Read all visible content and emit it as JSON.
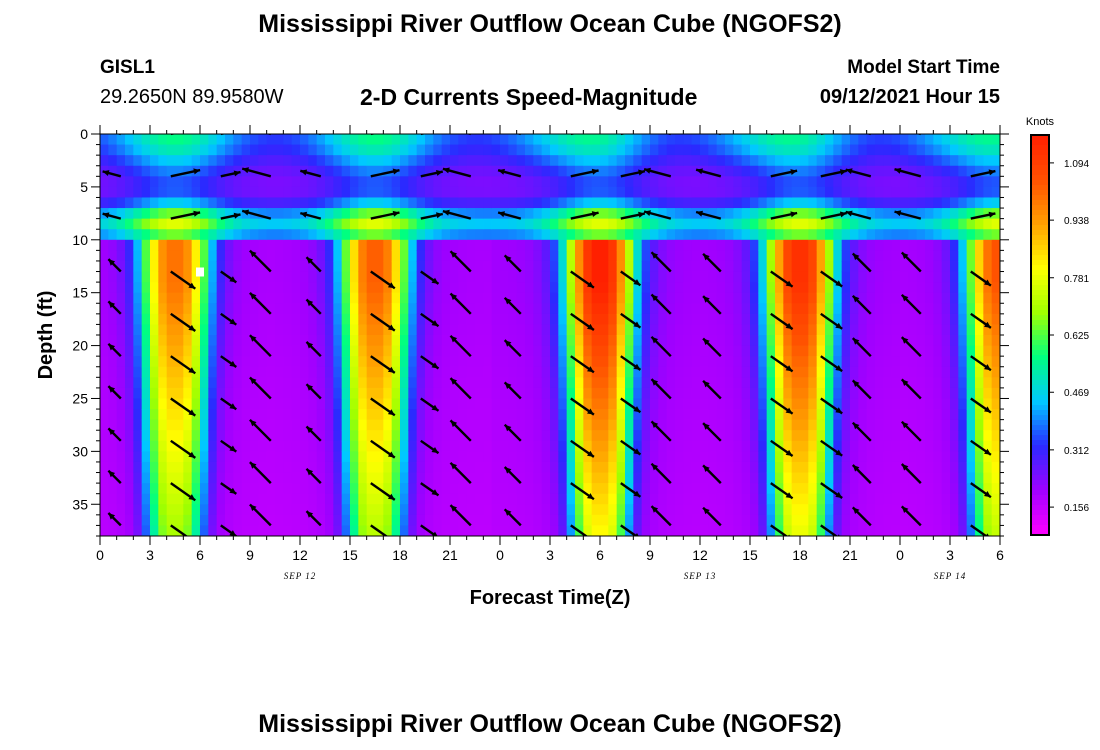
{
  "title": "Mississippi River Outflow Ocean Cube (NGOFS2)",
  "bottom_title": "Mississippi River Outflow Ocean Cube (NGOFS2)",
  "station": {
    "id": "GISL1",
    "coords": "29.2650N  89.9580W"
  },
  "subtitle": "2-D Currents Speed-Magnitude",
  "model_start": {
    "label": "Model Start Time",
    "value": "09/12/2021 Hour 15"
  },
  "chart_data": {
    "type": "heatmap",
    "xlabel": "Forecast Time(Z)",
    "ylabel": "Depth (ft)",
    "x_ticks": [
      "0",
      "3",
      "6",
      "9",
      "12",
      "15",
      "18",
      "21",
      "0",
      "3",
      "6",
      "9",
      "12",
      "15",
      "18",
      "21",
      "0",
      "3",
      "6"
    ],
    "x_range_hours": [
      0,
      54
    ],
    "date_labels": [
      {
        "text": "SEP 12",
        "hour": 12
      },
      {
        "text": "SEP 13",
        "hour": 36
      },
      {
        "text": "SEP 14",
        "hour": 51
      }
    ],
    "y_ticks": [
      0,
      5,
      10,
      15,
      20,
      25,
      30,
      35
    ],
    "ylim": [
      0,
      38
    ],
    "y_inverted": true,
    "colorbar": {
      "unit": "Knots",
      "ticks": [
        0.156,
        0.312,
        0.469,
        0.625,
        0.781,
        0.938,
        1.094
      ],
      "range": [
        0.08,
        1.17
      ],
      "colors": [
        "#ff00ff",
        "#a000ff",
        "#2a2aff",
        "#00c8ff",
        "#00ff80",
        "#a0ff00",
        "#ffff00",
        "#ffa000",
        "#ff5000",
        "#ff1e00"
      ]
    },
    "description_note": "Tidal current speed magnitude vs depth and forecast hour; high-speed lower layer (~10-38 ft) alternates with low-speed slack periods.",
    "speed_peaks": [
      {
        "hour": 4.5,
        "bottom": 0.95
      },
      {
        "hour": 16.5,
        "bottom": 0.98
      },
      {
        "hour": 30,
        "bottom": 1.12
      },
      {
        "hour": 42,
        "bottom": 1.08
      },
      {
        "hour": 54,
        "bottom": 1.0
      }
    ],
    "max_marker": {
      "hour": 6,
      "depth_ft": 13
    }
  }
}
